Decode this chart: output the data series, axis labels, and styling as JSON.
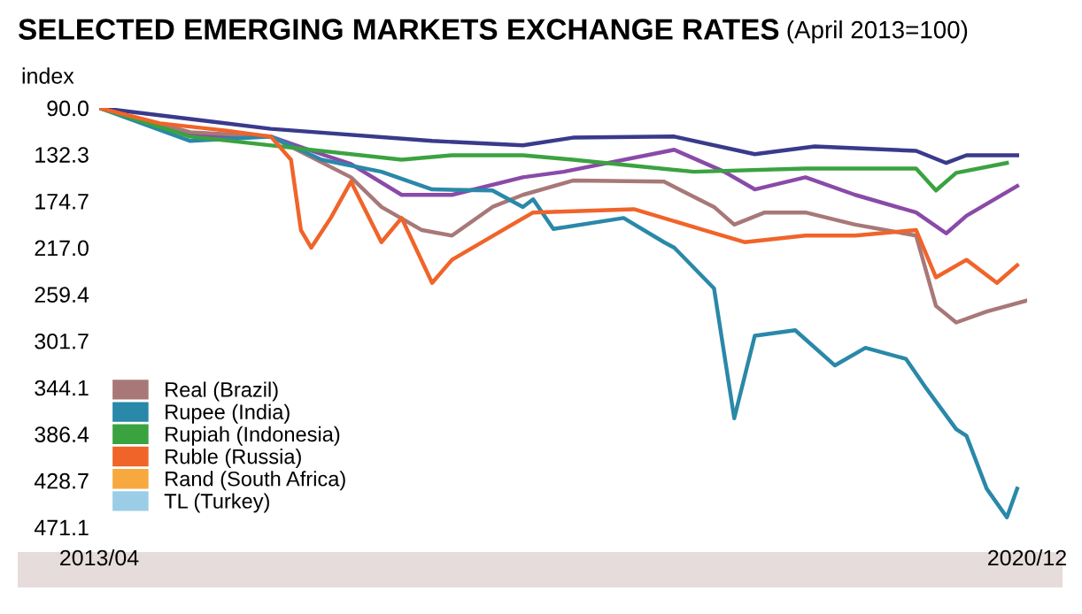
{
  "chart_data": {
    "type": "line",
    "title": "SELECTED EMERGING MARKETS EXCHANGE RATES",
    "subtitle": "(April 2013=100)",
    "ylabel": "index",
    "ylim": [
      471.1,
      90
    ],
    "yticks": [
      {
        "value": 90,
        "label": "90.0"
      },
      132.3,
      174.7,
      {
        "value": 217,
        "label": "217.0"
      },
      259.4,
      301.7,
      344.1,
      386.4,
      428.7,
      471.1
    ],
    "xlim": [
      "2013-04",
      "2020-12"
    ],
    "xticks": [
      {
        "value": "2013-04",
        "label": "2013/04"
      },
      {
        "value": "2020-12",
        "label": "2020/12"
      }
    ],
    "grid": false,
    "legend": "bottom left",
    "marker": "none",
    "line_style": "solid",
    "series": [
      {
        "color": "#3a3a8c",
        "x": [
          "2013-04",
          "2014-01",
          "2014-09",
          "2016-01",
          "2016-10",
          "2017-03",
          "2018-01",
          "2018-09",
          "2019-03",
          "2020-01",
          "2020-04",
          "2020-06",
          "2020-11"
        ],
        "values": [
          90,
          100,
          109,
          120,
          124,
          117,
          116,
          132,
          125,
          129,
          140,
          133,
          133
        ]
      },
      {
        "color": "#8a4aa8",
        "x": [
          "2013-04",
          "2014-01",
          "2014-09",
          "2015-02",
          "2015-05",
          "2015-10",
          "2016-03",
          "2016-10",
          "2017-02",
          "2018-01",
          "2018-06",
          "2018-09",
          "2019-02",
          "2019-07",
          "2020-01",
          "2020-04",
          "2020-06",
          "2020-11"
        ],
        "values": [
          90,
          115,
          116,
          132,
          141,
          169,
          169,
          153,
          148,
          128,
          148,
          164,
          153,
          169,
          185,
          204,
          188,
          161
        ]
      },
      {
        "name": "Real (Brazil)",
        "color": "#a87878",
        "x": [
          "2013-04",
          "2014-01",
          "2014-09",
          "2015-05",
          "2015-08",
          "2015-12",
          "2016-03",
          "2016-07",
          "2016-10",
          "2017-03",
          "2017-12",
          "2018-05",
          "2018-07",
          "2018-10",
          "2019-02",
          "2019-07",
          "2020-01",
          "2020-03",
          "2020-05",
          "2020-08",
          "2020-12"
        ],
        "values": [
          90,
          112,
          116,
          153,
          180,
          201,
          206,
          180,
          169,
          156,
          157,
          180,
          196,
          185,
          185,
          196,
          206,
          270,
          285,
          275,
          265
        ]
      },
      {
        "name": "Rupee (India)",
        "color": "#2a88a8",
        "x": [
          "2013-04",
          "2014-01",
          "2014-09",
          "2015-02",
          "2015-08",
          "2016-01",
          "2016-07",
          "2016-10",
          "2016-11",
          "2017-01",
          "2017-08",
          "2017-12",
          "2018-01",
          "2018-05",
          "2018-07",
          "2018-09",
          "2019-01",
          "2019-05",
          "2019-08",
          "2019-12",
          "2020-02",
          "2020-05",
          "2020-06",
          "2020-08",
          "2020-10",
          "2020-11"
        ],
        "values": [
          90,
          120,
          116,
          137,
          148,
          164,
          165,
          180,
          173,
          200,
          190,
          212,
          217,
          254,
          372,
          297,
          292,
          324,
          308,
          318,
          345,
          382,
          388,
          436,
          462,
          436
        ]
      },
      {
        "name": "Rupiah (Indonesia)",
        "color": "#3aa340",
        "x": [
          "2013-04",
          "2014-01",
          "2015-10",
          "2016-03",
          "2016-10",
          "2017-03",
          "2018-03",
          "2019-02",
          "2020-01",
          "2020-03",
          "2020-05",
          "2020-10"
        ],
        "values": [
          90,
          116,
          137,
          133,
          133,
          137,
          148,
          145,
          145,
          165,
          149,
          140
        ]
      },
      {
        "name": "Ruble (Russia)",
        "color": "#f0642a",
        "x": [
          "2013-04",
          "2013-10",
          "2014-04",
          "2014-09",
          "2014-11",
          "2014-12",
          "2015-01",
          "2015-03",
          "2015-05",
          "2015-08",
          "2015-10",
          "2016-01",
          "2016-03",
          "2016-08",
          "2016-11",
          "2017-09",
          "2018-04",
          "2018-08",
          "2019-02",
          "2019-07",
          "2020-01",
          "2020-03",
          "2020-06",
          "2020-09",
          "2020-11"
        ],
        "values": [
          90,
          104,
          110,
          116,
          137,
          201,
          217,
          190,
          157,
          212,
          190,
          249,
          228,
          201,
          185,
          182,
          201,
          212,
          206,
          206,
          201,
          244,
          228,
          249,
          233
        ]
      },
      {
        "name": "Rand (South Africa)",
        "color": "#f7a940"
      },
      {
        "name": "TL (Turkey)",
        "color": "#9ccde6"
      }
    ]
  }
}
